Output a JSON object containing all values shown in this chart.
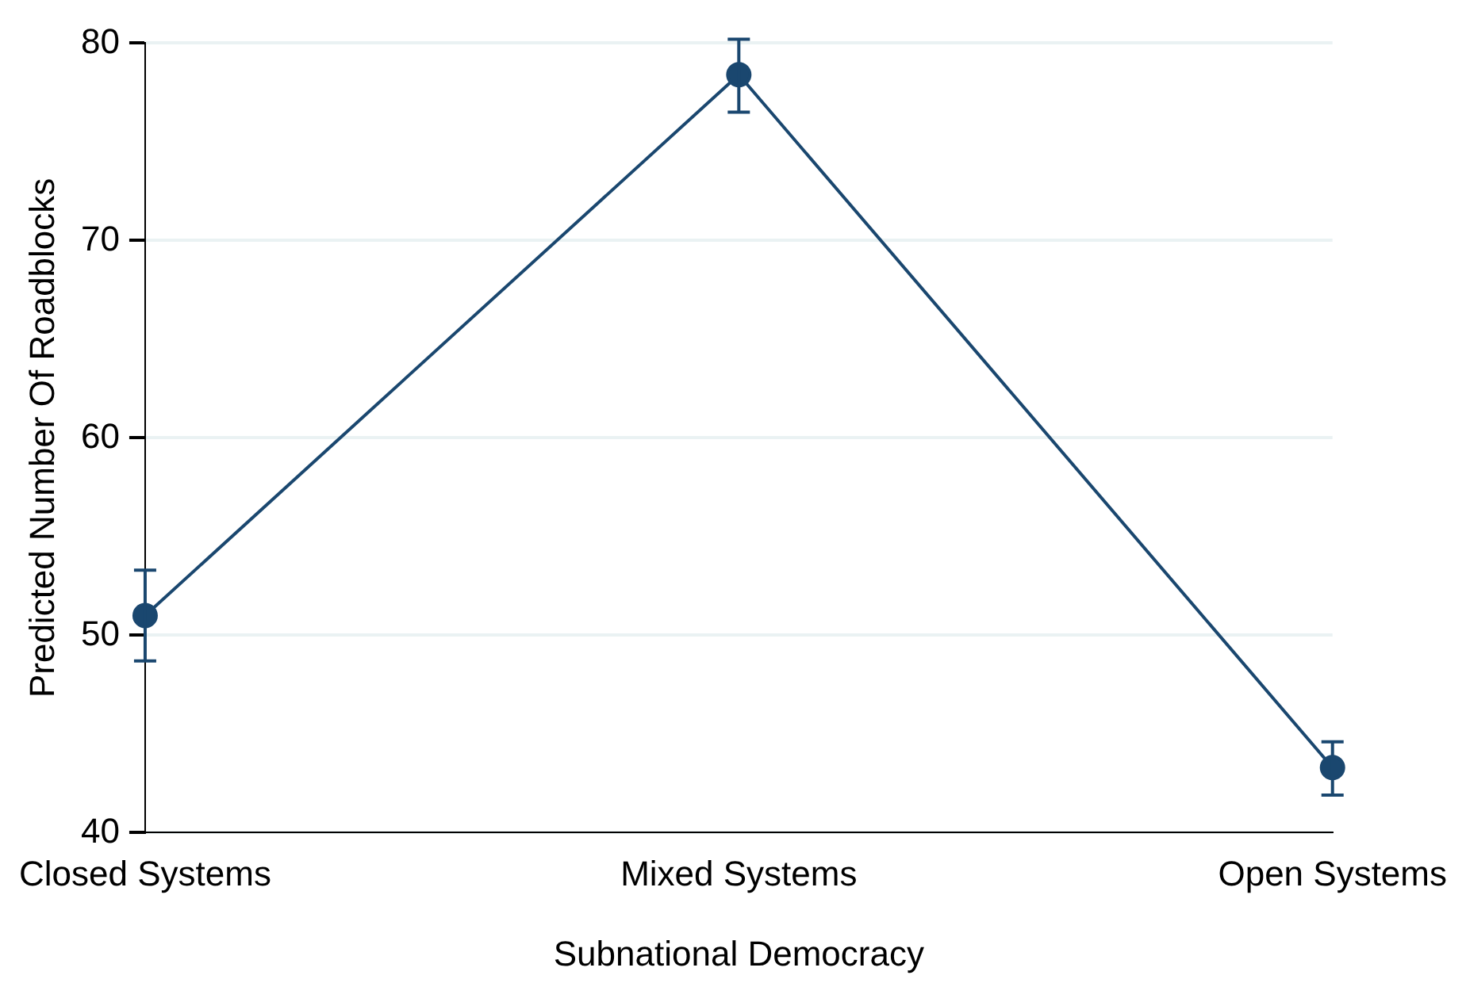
{
  "chart_data": {
    "type": "line",
    "xlabel": "Subnational Democracy",
    "ylabel": "Predicted Number Of Roadblocks",
    "categories": [
      "Closed Systems",
      "Mixed Systems",
      "Open Systems"
    ],
    "series": [
      {
        "color": "#1a476f",
        "values": [
          51.0,
          78.4,
          43.3
        ],
        "errors": [
          [
            48.7,
            53.3
          ],
          [
            76.5,
            80.2
          ],
          [
            41.9,
            44.6
          ]
        ]
      }
    ],
    "ylim": [
      40,
      80
    ],
    "yticks": [
      40,
      50,
      60,
      70,
      80
    ],
    "grid": "y",
    "legend": false,
    "marker": "circle",
    "line_style": "solid"
  }
}
